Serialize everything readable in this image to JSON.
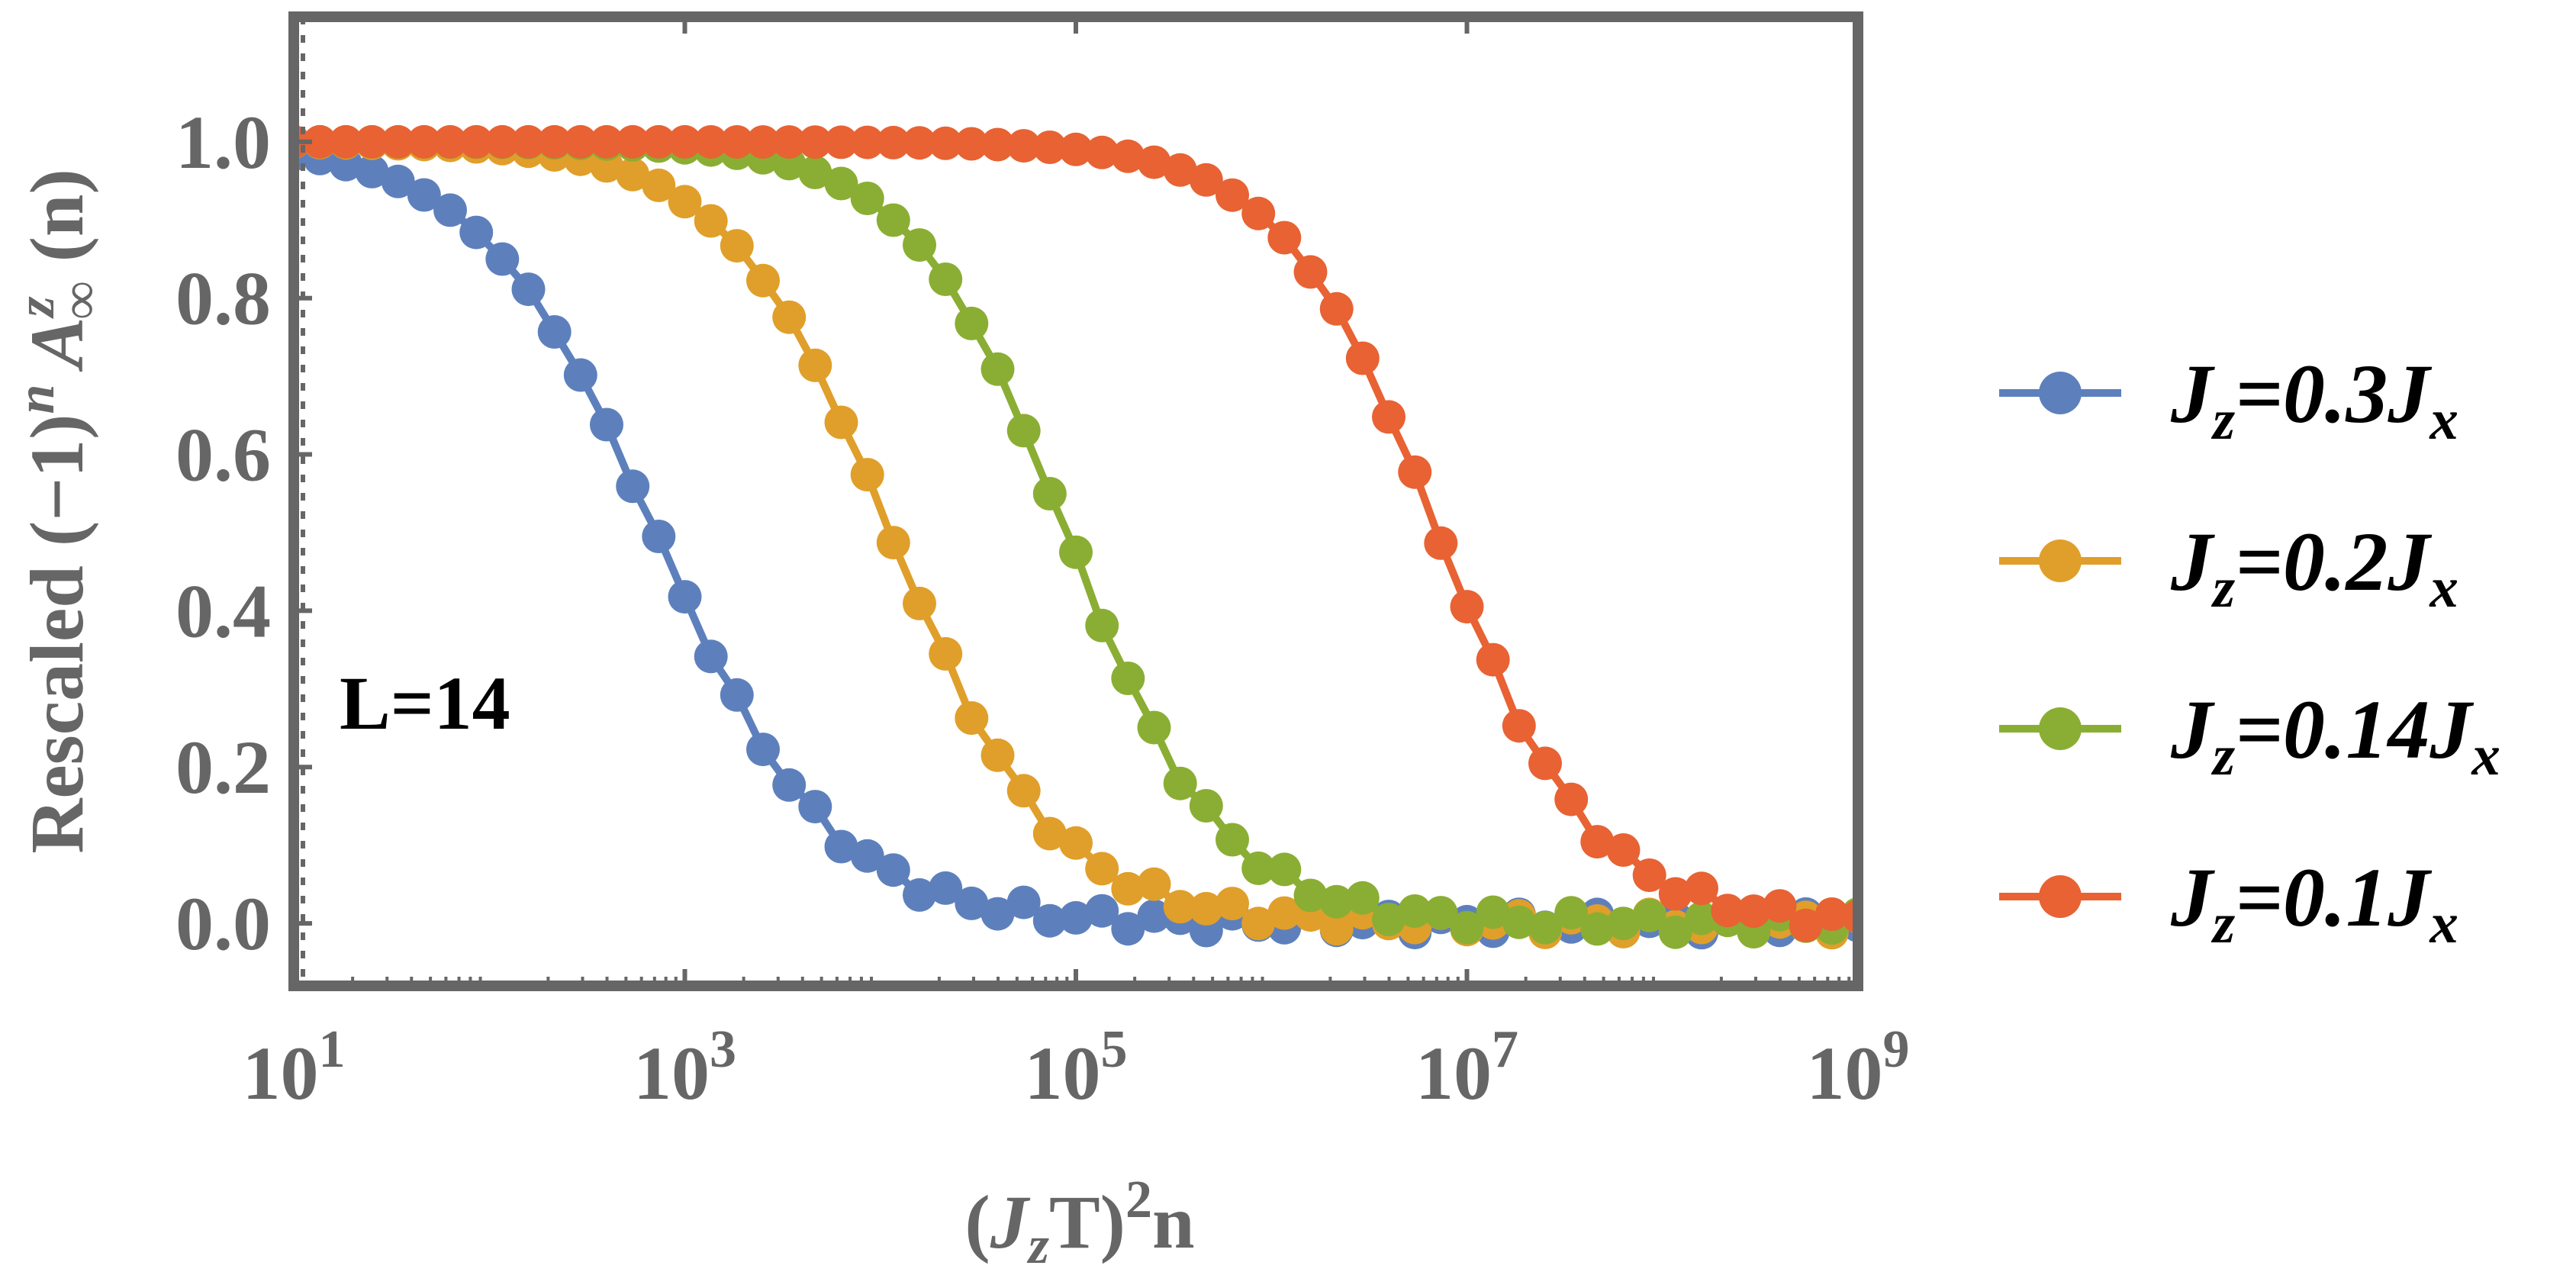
{
  "chart_data": {
    "type": "line",
    "xscale": "log",
    "xlim": [
      10,
      1000000000
    ],
    "ylim": [
      -0.08,
      1.16
    ],
    "ylabel": "Rescaled (−1)ⁿA∞ᶻ(n)",
    "xlabel": "(JzT)²n",
    "xticks": [
      {
        "value": 10,
        "base": "10",
        "exp": "1"
      },
      {
        "value": 1000,
        "base": "10",
        "exp": "3"
      },
      {
        "value": 100000,
        "base": "10",
        "exp": "5"
      },
      {
        "value": 10000000,
        "base": "10",
        "exp": "7"
      },
      {
        "value": 1000000000,
        "base": "10",
        "exp": "9"
      }
    ],
    "yticks": [
      {
        "value": 0.0,
        "label": "0.0"
      },
      {
        "value": 0.2,
        "label": "0.2"
      },
      {
        "value": 0.4,
        "label": "0.4"
      },
      {
        "value": 0.6,
        "label": "0.6"
      },
      {
        "value": 0.8,
        "label": "0.8"
      },
      {
        "value": 1.0,
        "label": "1.0"
      }
    ],
    "annotation": "L=14",
    "legend_position": "right",
    "series": [
      {
        "name": "Jz=0.3Jx",
        "legend": {
          "main": "J",
          "sub": "z",
          "mid": "=0.3J",
          "sub2": "x"
        },
        "color": "#5d80bd",
        "midpoint_log10": 2.85,
        "width_log10": 0.45,
        "points": [
          [
            10,
            1.02
          ],
          [
            11.3,
            0.98
          ]
        ]
      },
      {
        "name": "Jz=0.2Jx",
        "legend": {
          "main": "J",
          "sub": "z",
          "mid": "=0.2J",
          "sub2": "x"
        },
        "color": "#e09f2a",
        "midpoint_log10": 4.05,
        "width_log10": 0.42,
        "points": []
      },
      {
        "name": "Jz=0.14Jx",
        "legend": {
          "main": "J",
          "sub": "z",
          "mid": "=0.14J",
          "sub2": "x"
        },
        "color": "#8aae33",
        "midpoint_log10": 4.95,
        "width_log10": 0.4,
        "points": []
      },
      {
        "name": "Jz=0.1Jx",
        "legend": {
          "main": "J",
          "sub": "z",
          "mid": "=0.1J",
          "sub2": "x"
        },
        "color": "#e86233",
        "midpoint_log10": 6.85,
        "width_log10": 0.4,
        "points": []
      }
    ]
  }
}
